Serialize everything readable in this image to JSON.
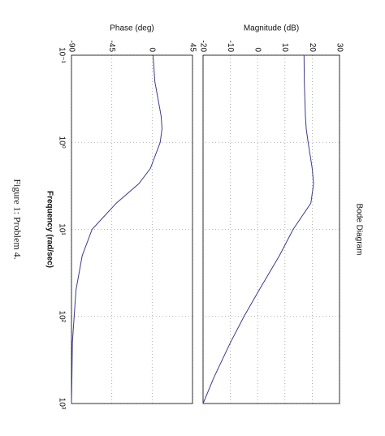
{
  "chart_data": [
    {
      "type": "line",
      "title": "Bode Diagram",
      "ylabel": "Magnitude (dB)",
      "x": [
        0.1,
        0.2,
        0.5,
        0.7,
        1,
        2,
        3,
        5,
        10,
        20,
        50,
        100,
        200,
        500,
        1000
      ],
      "values": [
        17,
        17.1,
        17.5,
        17.8,
        18.5,
        20,
        20.5,
        19.5,
        13,
        8,
        0.5,
        -5,
        -10,
        -16,
        -20
      ],
      "color": "#3b3b8c",
      "log_x": true,
      "grid": true,
      "xlim": [
        0.1,
        1000
      ],
      "ylim": [
        -20,
        30
      ],
      "yticks": [
        -20,
        -10,
        0,
        10,
        20,
        30
      ]
    },
    {
      "type": "line",
      "ylabel": "Phase (deg)",
      "xlabel": "Frequency  (rad/sec)",
      "x": [
        0.1,
        0.2,
        0.5,
        0.7,
        1,
        2,
        3,
        5,
        10,
        20,
        50,
        100,
        200,
        500,
        1000
      ],
      "values": [
        1,
        3,
        10,
        11,
        9,
        -2,
        -15,
        -40,
        -67,
        -78,
        -85,
        -87,
        -89,
        -89.5,
        -90
      ],
      "color": "#3b3b8c",
      "log_x": true,
      "grid": true,
      "xlim": [
        0.1,
        1000
      ],
      "ylim": [
        -90,
        45
      ],
      "yticks": [
        -90,
        -45,
        0,
        45
      ],
      "xticks": [
        {
          "value": 0.1,
          "label": "10⁻¹"
        },
        {
          "value": 1,
          "label": "10⁰"
        },
        {
          "value": 10,
          "label": "10¹"
        },
        {
          "value": 100,
          "label": "10²"
        },
        {
          "value": 1000,
          "label": "10³"
        }
      ]
    }
  ],
  "caption": "Figure 1: Problem 4."
}
